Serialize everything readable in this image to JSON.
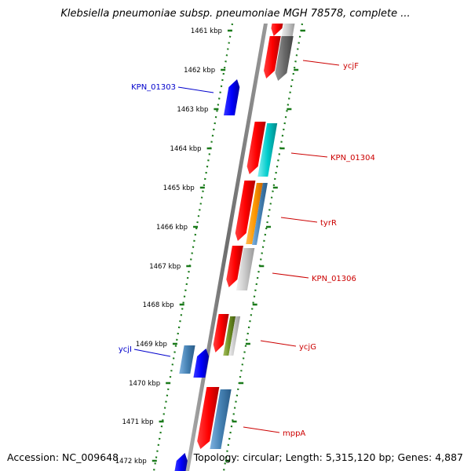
{
  "title": "Klebsiella pneumoniae subsp. pneumoniae MGH 78578, complete ...",
  "footer": {
    "accession": "Accession: NC_009648",
    "summary": "Topology: circular; Length: 5,315,120 bp; Genes: 4,887"
  },
  "colors": {
    "minus_strand_label": "#0000cc",
    "plus_strand_label": "#cc0000",
    "tick": "#1a7a1a",
    "backbone": "#777777"
  },
  "ticks": [
    {
      "label": "1461 kbp"
    },
    {
      "label": "1462 kbp"
    },
    {
      "label": "1463 kbp"
    },
    {
      "label": "1464 kbp"
    },
    {
      "label": "1465 kbp"
    },
    {
      "label": "1466 kbp"
    },
    {
      "label": "1467 kbp"
    },
    {
      "label": "1468 kbp"
    },
    {
      "label": "1469 kbp"
    },
    {
      "label": "1470 kbp"
    },
    {
      "label": "1471 kbp"
    },
    {
      "label": "1472 kbp"
    }
  ],
  "genes_minus": [
    {
      "label": "KPN_01303"
    },
    {
      "label": "ycjI"
    }
  ],
  "genes_plus": [
    {
      "label": "ycjF"
    },
    {
      "label": "KPN_01304"
    },
    {
      "label": "tyrR"
    },
    {
      "label": "KPN_01306"
    },
    {
      "label": "ycjG"
    },
    {
      "label": "mppA"
    }
  ]
}
